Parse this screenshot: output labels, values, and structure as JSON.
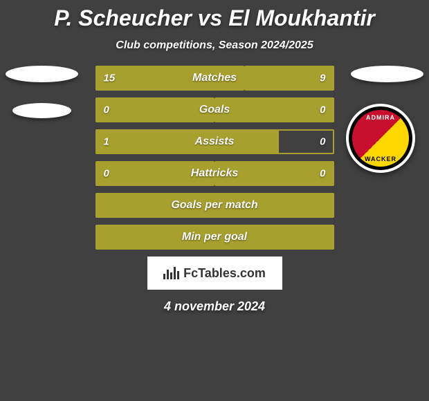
{
  "title": "P. Scheucher vs El Moukhantir",
  "subtitle": "Club competitions, Season 2024/2025",
  "date": "4 november 2024",
  "badge": {
    "text_top": "ADMIRA",
    "text_bottom": "WACKER"
  },
  "fctables_label": "FcTables.com",
  "stats": [
    {
      "label": "Matches",
      "left_value": "15",
      "right_value": "9",
      "left_width_pct": 62.5,
      "right_width_pct": 37.5,
      "type": "split"
    },
    {
      "label": "Goals",
      "left_value": "0",
      "right_value": "0",
      "left_width_pct": 50,
      "right_width_pct": 50,
      "type": "split"
    },
    {
      "label": "Assists",
      "left_value": "1",
      "right_value": "0",
      "left_width_pct": 77,
      "right_width_pct": 0,
      "type": "left-partial"
    },
    {
      "label": "Hattricks",
      "left_value": "0",
      "right_value": "0",
      "left_width_pct": 50,
      "right_width_pct": 50,
      "type": "split"
    },
    {
      "label": "Goals per match",
      "left_value": "",
      "right_value": "",
      "type": "full"
    },
    {
      "label": "Min per goal",
      "left_value": "",
      "right_value": "",
      "type": "full"
    }
  ],
  "colors": {
    "background": "#404040",
    "bar_fill": "#a8a02e",
    "text": "#ffffff",
    "badge_red": "#c8102e",
    "badge_gold": "#ffd700"
  }
}
